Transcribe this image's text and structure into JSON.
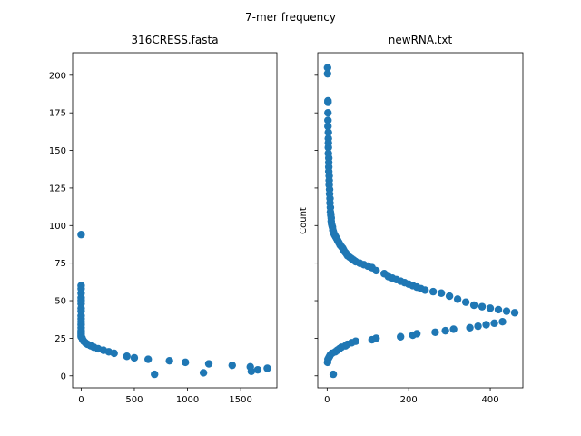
{
  "figure": {
    "suptitle": "7-mer frequency"
  },
  "colors": {
    "marker": "#1f77b4",
    "axes": "#000000",
    "background": "#ffffff"
  },
  "chart_data": [
    {
      "type": "scatter",
      "title": "316CRESS.fasta",
      "xlabel": "",
      "ylabel": "",
      "xlim": [
        -80,
        1840
      ],
      "ylim": [
        -8,
        215
      ],
      "xticks": [
        0,
        500,
        1000,
        1500
      ],
      "xtick_labels": [
        "0",
        "500",
        "1000",
        "1500"
      ],
      "yticks": [
        0,
        25,
        50,
        75,
        100,
        125,
        150,
        175,
        200
      ],
      "ytick_labels": [
        "0",
        "25",
        "50",
        "75",
        "100",
        "125",
        "150",
        "175",
        "200"
      ],
      "grid": false,
      "series": [
        {
          "x": [
            0,
            0,
            0,
            0,
            0,
            0,
            0,
            0,
            0,
            0,
            0,
            0,
            0,
            0,
            0,
            0,
            0,
            0,
            0,
            10,
            15,
            25,
            40,
            60,
            90,
            120,
            160,
            210,
            260,
            310,
            430,
            500,
            630,
            690,
            830,
            980,
            1150,
            1200,
            1420,
            1590,
            1600,
            1660,
            1750
          ],
          "y": [
            94,
            60,
            58,
            55,
            52,
            50,
            48,
            45,
            43,
            40,
            38,
            36,
            34,
            32,
            30,
            29,
            28,
            27,
            26,
            25,
            24,
            23,
            22,
            21,
            20,
            19,
            18,
            17,
            16,
            15,
            13,
            12,
            11,
            1,
            10,
            9,
            2,
            8,
            7,
            6,
            3,
            4,
            5
          ]
        }
      ]
    },
    {
      "type": "scatter",
      "title": "newRNA.txt",
      "xlabel": "",
      "ylabel": "Count",
      "xlim": [
        -23,
        480
      ],
      "ylim": [
        -8,
        215
      ],
      "xticks": [
        0,
        200,
        400
      ],
      "xtick_labels": [
        "0",
        "200",
        "400"
      ],
      "yticks": [
        0,
        25,
        50,
        75,
        100,
        125,
        150,
        175,
        200
      ],
      "ytick_labels": [],
      "grid": false,
      "series": [
        {
          "x": [
            1,
            1,
            2,
            2,
            2,
            2,
            2,
            3,
            3,
            3,
            3,
            3,
            4,
            4,
            4,
            4,
            5,
            5,
            5,
            6,
            6,
            7,
            7,
            8,
            8,
            9,
            10,
            10,
            11,
            12,
            13,
            14,
            15,
            16,
            18,
            20,
            22,
            24,
            26,
            28,
            30,
            32,
            35,
            38,
            40,
            42,
            45,
            48,
            50,
            55,
            60,
            65,
            70,
            80,
            90,
            100,
            110,
            120,
            140,
            150,
            160,
            170,
            180,
            190,
            200,
            210,
            220,
            230,
            240,
            260,
            280,
            300,
            320,
            340,
            360,
            380,
            400,
            420,
            440,
            460
          ],
          "y": [
            205,
            201,
            183,
            182,
            175,
            170,
            166,
            162,
            158,
            155,
            152,
            148,
            145,
            142,
            139,
            136,
            133,
            130,
            127,
            124,
            121,
            118,
            115,
            112,
            109,
            107,
            105,
            103,
            101,
            100,
            99,
            97,
            96,
            95,
            94,
            93,
            92,
            91,
            90,
            89,
            88,
            87,
            86,
            85,
            84,
            83,
            82,
            81,
            80,
            79,
            78,
            77,
            76,
            75,
            74,
            73,
            72,
            70,
            68,
            66,
            65,
            64,
            63,
            62,
            61,
            60,
            59,
            58,
            57,
            56,
            55,
            53,
            51,
            49,
            47,
            46,
            45,
            44,
            43,
            42
          ]
        },
        {
          "x": [
            1,
            2,
            4,
            6,
            8,
            12,
            15,
            20,
            25,
            30,
            35,
            45,
            50,
            60,
            70,
            110,
            120,
            180,
            210,
            220,
            265,
            290,
            310,
            350,
            370,
            390,
            410,
            430
          ],
          "y": [
            9,
            11,
            12,
            13,
            14,
            15,
            1,
            16,
            17,
            18,
            19,
            20,
            21,
            22,
            23,
            24,
            25,
            26,
            27,
            28,
            29,
            30,
            31,
            32,
            33,
            34,
            35,
            36
          ]
        }
      ]
    }
  ]
}
